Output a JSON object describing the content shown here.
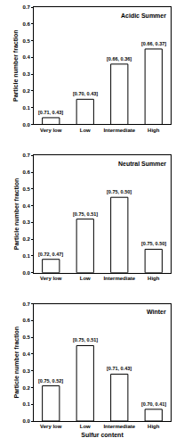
{
  "chart_data": [
    {
      "type": "bar",
      "title": "Acidic Summer",
      "categories": [
        "Very low",
        "Low",
        "Intermediate",
        "High"
      ],
      "values": [
        0.04,
        0.15,
        0.36,
        0.45
      ],
      "annotations": [
        "[0.71, 0.43]",
        "[0.70, 0.43]",
        "[0.66, 0.36]",
        "[0.66, 0.37]"
      ],
      "color": "#ffffff",
      "ylabel": "Particle number fraction",
      "ylim": [
        0,
        0.7
      ],
      "yticks": [
        {
          "value": 0,
          "label": "0.0"
        },
        0.1,
        0.2,
        0.3,
        0.4,
        0.5,
        0.6,
        0.7
      ],
      "grid": false
    },
    {
      "type": "bar",
      "title": "Neutral Summer",
      "categories": [
        "Very low",
        "Low",
        "Intermediate",
        "High"
      ],
      "values": [
        0.08,
        0.32,
        0.45,
        0.14
      ],
      "annotations": [
        "[0.72, 0.47]",
        "[0.75, 0.51]",
        "[0.75, 0.50]",
        "[0.75, 0.50]"
      ],
      "color": "#ffffff",
      "ylabel": "Particle number fraction",
      "ylim": [
        0,
        0.7
      ],
      "yticks": [
        {
          "value": 0,
          "label": "0.0"
        },
        0.1,
        0.2,
        0.3,
        0.4,
        0.5,
        0.6,
        0.7
      ],
      "grid": false
    },
    {
      "type": "bar",
      "title": "Winter",
      "categories": [
        "Very low",
        "Low",
        "Intermediate",
        "High"
      ],
      "values": [
        0.21,
        0.45,
        0.28,
        0.07
      ],
      "annotations": [
        "[0.75, 0.52]",
        "[0.75, 0.51]",
        "[0.71, 0.43]",
        "[0.70, 0.41]"
      ],
      "color": "#ffffff",
      "ylabel": "Particle number fraction",
      "xlabel": "Sulfur content",
      "ylim": [
        0,
        0.7
      ],
      "yticks": [
        {
          "value": 0,
          "label": "0.0"
        },
        0.1,
        0.2,
        0.3,
        0.4,
        0.5,
        0.6,
        0.7
      ],
      "grid": false
    }
  ]
}
